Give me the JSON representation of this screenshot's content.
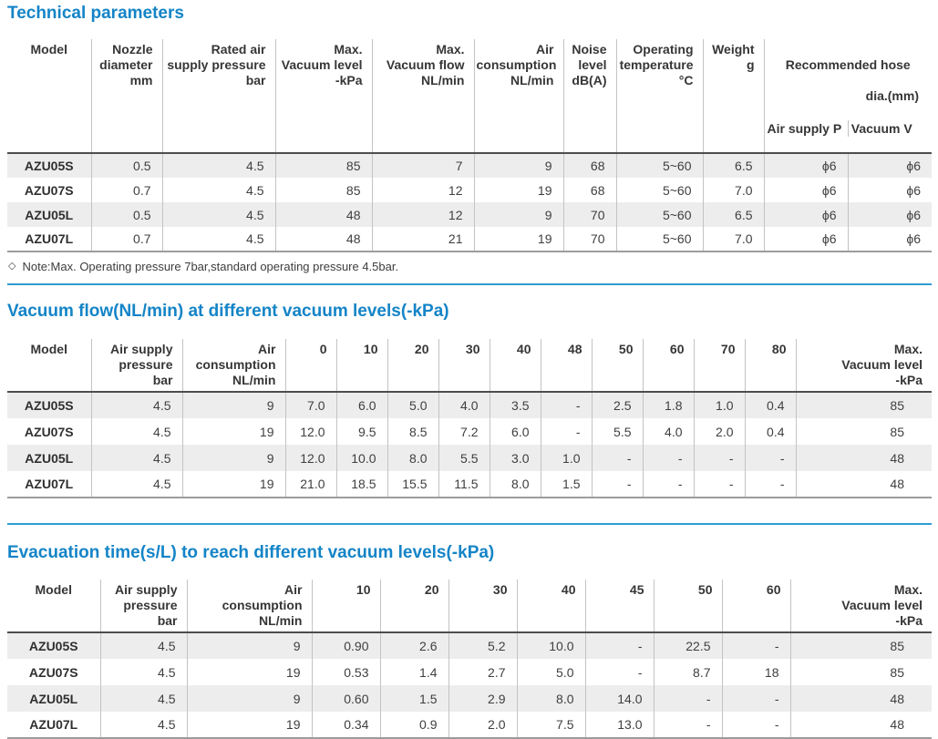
{
  "colors": {
    "title_blue": "#1484c7",
    "divider_blue": "#2e9cd1",
    "header_rule": "#4d4d4d",
    "table_bottom_rule": "#9c9c9c",
    "row_stripe": "#ededed"
  },
  "tech": {
    "title": "Technical parameters",
    "headers": {
      "model": "Model",
      "nozzle": "Nozzle\ndiameter\nmm",
      "rated": "Rated air\nsupply pressure\nbar",
      "max_level": "Max.\nVacuum level\n-kPa",
      "max_flow": "Max.\nVacuum flow\nNL/min",
      "air_cons": "Air\nconsumption\nNL/min",
      "noise": "Noise\nlevel\ndB(A)",
      "temp": "Operating\ntemperature\n°C",
      "weight": "Weight\ng",
      "hose_line1": "Recommended hose",
      "hose_line2": "dia.(mm)",
      "hose_sub_air": "Air supply P",
      "hose_sub_vac": "Vacuum V"
    },
    "rows": [
      [
        "AZU05S",
        "0.5",
        "4.5",
        "85",
        "7",
        "9",
        "68",
        "5~60",
        "6.5",
        "ϕ6",
        "ϕ6"
      ],
      [
        "AZU07S",
        "0.7",
        "4.5",
        "85",
        "12",
        "19",
        "68",
        "5~60",
        "7.0",
        "ϕ6",
        "ϕ6"
      ],
      [
        "AZU05L",
        "0.5",
        "4.5",
        "48",
        "12",
        "9",
        "70",
        "5~60",
        "6.5",
        "ϕ6",
        "ϕ6"
      ],
      [
        "AZU07L",
        "0.7",
        "4.5",
        "48",
        "21",
        "19",
        "70",
        "5~60",
        "7.0",
        "ϕ6",
        "ϕ6"
      ]
    ],
    "note_icon": "◇",
    "note_text": "Note:Max. Operating pressure 7bar,standard operating pressure 4.5bar."
  },
  "flow": {
    "title": "Vacuum flow(NL/min) at different vacuum levels(-kPa)",
    "headers": {
      "model": "Model",
      "pressure": "Air supply\npressure\nbar",
      "air_cons": "Air\nconsumption\nNL/min",
      "levels": [
        "0",
        "10",
        "20",
        "30",
        "40",
        "48",
        "50",
        "60",
        "70",
        "80"
      ],
      "max_level": "Max.\nVacuum level\n-kPa"
    },
    "rows": [
      [
        "AZU05S",
        "4.5",
        "9",
        "7.0",
        "6.0",
        "5.0",
        "4.0",
        "3.5",
        "-",
        "2.5",
        "1.8",
        "1.0",
        "0.4",
        "85"
      ],
      [
        "AZU07S",
        "4.5",
        "19",
        "12.0",
        "9.5",
        "8.5",
        "7.2",
        "6.0",
        "-",
        "5.5",
        "4.0",
        "2.0",
        "0.4",
        "85"
      ],
      [
        "AZU05L",
        "4.5",
        "9",
        "12.0",
        "10.0",
        "8.0",
        "5.5",
        "3.0",
        "1.0",
        "-",
        "-",
        "-",
        "-",
        "48"
      ],
      [
        "AZU07L",
        "4.5",
        "19",
        "21.0",
        "18.5",
        "15.5",
        "11.5",
        "8.0",
        "1.5",
        "-",
        "-",
        "-",
        "-",
        "48"
      ]
    ]
  },
  "evac": {
    "title": "Evacuation time(s/L) to reach different vacuum levels(-kPa)",
    "headers": {
      "model": "Model",
      "pressure": "Air supply\npressure\nbar",
      "air_cons": "Air\nconsumption\nNL/min",
      "levels": [
        "10",
        "20",
        "30",
        "40",
        "45",
        "50",
        "60"
      ],
      "max_level": "Max.\nVacuum level\n-kPa"
    },
    "rows": [
      [
        "AZU05S",
        "4.5",
        "9",
        "0.90",
        "2.6",
        "5.2",
        "10.0",
        "-",
        "22.5",
        "-",
        "85"
      ],
      [
        "AZU07S",
        "4.5",
        "19",
        "0.53",
        "1.4",
        "2.7",
        "5.0",
        "-",
        "8.7",
        "18",
        "85"
      ],
      [
        "AZU05L",
        "4.5",
        "9",
        "0.60",
        "1.5",
        "2.9",
        "8.0",
        "14.0",
        "-",
        "-",
        "48"
      ],
      [
        "AZU07L",
        "4.5",
        "19",
        "0.34",
        "0.9",
        "2.0",
        "7.5",
        "13.0",
        "-",
        "-",
        "48"
      ]
    ]
  }
}
